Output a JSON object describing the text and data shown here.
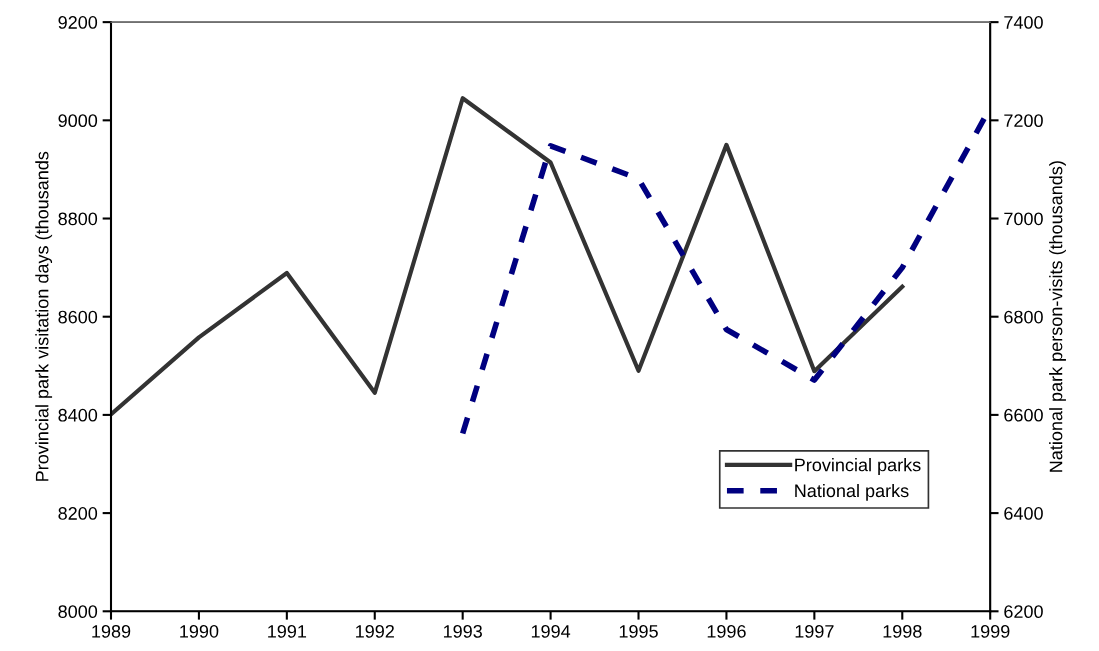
{
  "chart_data": {
    "type": "line",
    "x": [
      1989,
      1990,
      1991,
      1992,
      1993,
      1994,
      1995,
      1996,
      1997,
      1998,
      1999
    ],
    "series": [
      {
        "name": "Provincial parks",
        "color": "#333333",
        "line_style": "solid",
        "values": [
          8401,
          8558,
          8689,
          8445,
          9045,
          8914,
          8490,
          8950,
          8489,
          8661,
          null
        ]
      },
      {
        "name": "National parks",
        "color": "#000080",
        "line_style": "dashed",
        "axis": "y2",
        "values": [
          null,
          null,
          null,
          null,
          6562,
          7148,
          7081,
          6774,
          6671,
          6900,
          7226
        ]
      }
    ],
    "ylabel": "Provincial park visitation days (thousands",
    "y2label": "National park person-visits (thousands)",
    "xlim": [
      1989,
      1999
    ],
    "xticks": [
      1989,
      1990,
      1991,
      1992,
      1993,
      1994,
      1995,
      1996,
      1997,
      1998,
      1999
    ],
    "ylim": [
      8000,
      9200
    ],
    "yticks": [
      8000,
      8200,
      8400,
      8600,
      8800,
      9000,
      9200
    ],
    "y2lim": [
      6200,
      7400
    ],
    "y2ticks": [
      6200,
      6400,
      6600,
      6800,
      7000,
      7200,
      7400
    ],
    "grid": false,
    "legend": "bottom right",
    "marker": "none"
  }
}
